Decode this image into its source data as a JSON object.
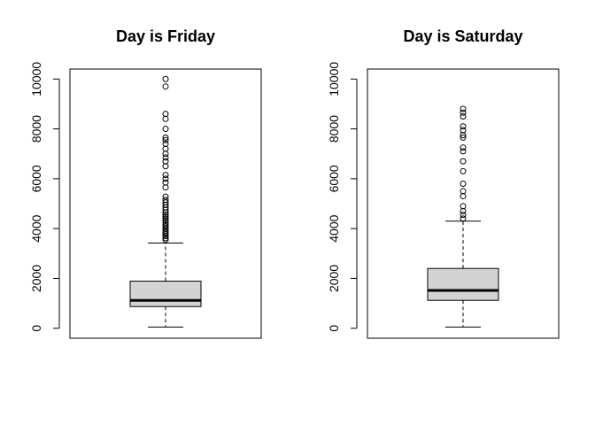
{
  "chart_data": [
    {
      "type": "boxplot",
      "title": "Day is Friday",
      "xlabel": "",
      "ylabel": "",
      "ylim": [
        -400,
        10400
      ],
      "yticks": [
        0,
        2000,
        4000,
        6000,
        8000,
        10000
      ],
      "box_color": "#d3d3d3",
      "stats": {
        "min": 50,
        "q1": 870,
        "median": 1120,
        "q3": 1890,
        "max": 3420
      },
      "outliers": [
        3550,
        3620,
        3700,
        3780,
        3850,
        3920,
        4000,
        4080,
        4150,
        4230,
        4320,
        4400,
        4480,
        4560,
        4650,
        4750,
        4850,
        4950,
        5050,
        5150,
        5280,
        5650,
        5850,
        6000,
        6150,
        6500,
        6700,
        6850,
        7000,
        7200,
        7400,
        7550,
        7650,
        8000,
        8400,
        8600,
        9700,
        10000
      ]
    },
    {
      "type": "boxplot",
      "title": "Day is Saturday",
      "xlabel": "",
      "ylabel": "",
      "ylim": [
        -400,
        10400
      ],
      "yticks": [
        0,
        2000,
        4000,
        6000,
        8000,
        10000
      ],
      "box_color": "#d3d3d3",
      "stats": {
        "min": 50,
        "q1": 1120,
        "median": 1520,
        "q3": 2400,
        "max": 4300
      },
      "outliers": [
        4400,
        4550,
        4700,
        4900,
        5300,
        5500,
        5800,
        6300,
        6700,
        7100,
        7250,
        7650,
        7750,
        7950,
        8100,
        8500,
        8650,
        8800
      ]
    }
  ]
}
